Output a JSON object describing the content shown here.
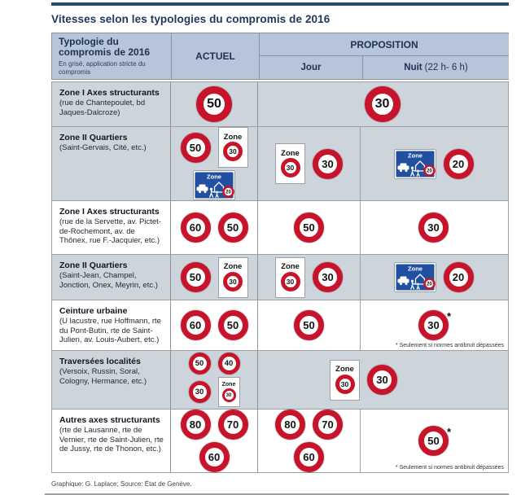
{
  "title": "Vitesses selon les typologies du compromis de 2016",
  "header": {
    "col_typology_title": "Typologie du compromis de 2016",
    "col_typology_note": "En grisé, application stricte du compromis",
    "col_actuel": "ACTUEL",
    "col_proposition": "PROPOSITION",
    "col_jour": "Jour",
    "col_nuit_label": "Nuit",
    "col_nuit_hours": "(22 h- 6 h)"
  },
  "signs": {
    "zone_label": "Zone",
    "zone30_value": "30",
    "zone_rencontre_value": "20"
  },
  "footnote": "* Seulement si normes antibruit dépassées",
  "footer": "Graphique: G. Laplace; Source: État de Genève.",
  "colors": {
    "top_rule": "#1b5074",
    "title_text": "#21375c",
    "header_cell_bg": "#b6c5d9",
    "shaded_row_bg": "#ced4dc",
    "sign_red": "#c8142b",
    "zone_sign_blue": "#2150a3"
  },
  "rows": [
    {
      "name": "Zone I Axes structurants",
      "details": "(rue de Chantepoulet, bd Jaques-Dalcroze)",
      "shaded": true,
      "merged": true,
      "actuel": [
        [
          {
            "t": "limit",
            "v": "50",
            "s": "lg"
          }
        ]
      ],
      "proposition": [
        [
          {
            "t": "limit",
            "v": "30",
            "s": "lg"
          }
        ]
      ]
    },
    {
      "name": "Zone II Quartiers",
      "details": "(Saint-Gervais, Cité, etc.)",
      "shaded": true,
      "merged": false,
      "actuel": [
        [
          {
            "t": "limit",
            "v": "50",
            "s": "md"
          },
          {
            "t": "zone30",
            "s": "md"
          }
        ],
        [
          {
            "t": "zoneb"
          }
        ]
      ],
      "jour": [
        [
          {
            "t": "zone30",
            "s": "md"
          },
          {
            "t": "limit",
            "v": "30",
            "s": "md"
          }
        ]
      ],
      "nuit": [
        [
          {
            "t": "zoneb"
          },
          {
            "t": "limit",
            "v": "20",
            "s": "md"
          }
        ]
      ]
    },
    {
      "name": "Zone I Axes structurants",
      "details": "(rue de la Servette, av. Pictet-de-Rochemont, av. de Thônex, rue F.-Jacquier, etc.)",
      "shaded": false,
      "merged": false,
      "actuel": [
        [
          {
            "t": "limit",
            "v": "60",
            "s": "md"
          },
          {
            "t": "limit",
            "v": "50",
            "s": "md"
          }
        ]
      ],
      "jour": [
        [
          {
            "t": "limit",
            "v": "50",
            "s": "md"
          }
        ]
      ],
      "nuit": [
        [
          {
            "t": "limit",
            "v": "30",
            "s": "md"
          }
        ]
      ]
    },
    {
      "name": "Zone II Quartiers",
      "details": "(Saint-Jean, Champel, Jonction, Onex, Meyrin, etc.)",
      "shaded": true,
      "merged": false,
      "actuel": [
        [
          {
            "t": "limit",
            "v": "50",
            "s": "md"
          },
          {
            "t": "zone30",
            "s": "md"
          }
        ]
      ],
      "jour": [
        [
          {
            "t": "zone30",
            "s": "md"
          },
          {
            "t": "limit",
            "v": "30",
            "s": "md"
          }
        ]
      ],
      "nuit": [
        [
          {
            "t": "zoneb"
          },
          {
            "t": "limit",
            "v": "20",
            "s": "md"
          }
        ]
      ]
    },
    {
      "name": "Ceinture urbaine",
      "details": "(U lacustre, rue Hoffmann, rte du Pont-Butin, rte de Saint-Julien, av. Louis-Aubert, etc.)",
      "shaded": false,
      "merged": false,
      "actuel": [
        [
          {
            "t": "limit",
            "v": "60",
            "s": "md"
          },
          {
            "t": "limit",
            "v": "50",
            "s": "md"
          }
        ]
      ],
      "jour": [
        [
          {
            "t": "limit",
            "v": "50",
            "s": "md"
          }
        ]
      ],
      "nuit": [
        [
          {
            "t": "limit",
            "v": "30",
            "s": "md",
            "star": true
          }
        ]
      ],
      "nuit_footnote": true
    },
    {
      "name": "Traversées localités",
      "details": "(Versoix, Russin, Soral, Cologny, Hermance, etc.)",
      "shaded": true,
      "merged": true,
      "actuel": [
        [
          {
            "t": "limit",
            "v": "50",
            "s": "sm"
          },
          {
            "t": "limit",
            "v": "40",
            "s": "sm"
          }
        ],
        [
          {
            "t": "limit",
            "v": "30",
            "s": "sm"
          },
          {
            "t": "zone30",
            "s": "sm"
          }
        ]
      ],
      "proposition": [
        [
          {
            "t": "zone30",
            "s": "md"
          },
          {
            "t": "limit",
            "v": "30",
            "s": "md"
          }
        ]
      ]
    },
    {
      "name": "Autres axes structurants",
      "details": "(rte de Lausanne, rte de Vernier, rte de Saint-Julien, rte de Jussy, rte de Thonon, etc.)",
      "shaded": false,
      "merged": false,
      "actuel": [
        [
          {
            "t": "limit",
            "v": "80",
            "s": "md"
          },
          {
            "t": "limit",
            "v": "70",
            "s": "md"
          }
        ],
        [
          {
            "t": "limit",
            "v": "60",
            "s": "md"
          }
        ]
      ],
      "jour": [
        [
          {
            "t": "limit",
            "v": "80",
            "s": "md"
          },
          {
            "t": "limit",
            "v": "70",
            "s": "md"
          }
        ],
        [
          {
            "t": "limit",
            "v": "60",
            "s": "md"
          }
        ]
      ],
      "nuit": [
        [
          {
            "t": "limit",
            "v": "50",
            "s": "md",
            "star": true
          }
        ]
      ],
      "nuit_footnote": true
    }
  ],
  "chart_data": {
    "type": "table",
    "title": "Vitesses selon les typologies du compromis de 2016",
    "columns": [
      "Typologie du compromis de 2016",
      "ACTUEL",
      "PROPOSITION — Jour",
      "PROPOSITION — Nuit (22 h- 6 h)"
    ],
    "legend_note": "En grisé, application stricte du compromis",
    "rows": [
      {
        "typologie": "Zone I Axes structurants (rue de Chantepoulet, bd Jaques-Dalcroze)",
        "actuel": "50",
        "proposition_jour": "30",
        "proposition_nuit": "30",
        "application_stricte": true
      },
      {
        "typologie": "Zone II Quartiers (Saint-Gervais, Cité, etc.)",
        "actuel": "50, Zone 30, Zone de rencontre 20",
        "proposition_jour": "Zone 30, 30",
        "proposition_nuit": "Zone de rencontre 20, 20",
        "application_stricte": true
      },
      {
        "typologie": "Zone I Axes structurants (rue de la Servette, av. Pictet-de-Rochemont, av. de Thônex, rue F.-Jacquier, etc.)",
        "actuel": "60, 50",
        "proposition_jour": "50",
        "proposition_nuit": "30",
        "application_stricte": false
      },
      {
        "typologie": "Zone II Quartiers (Saint-Jean, Champel, Jonction, Onex, Meyrin, etc.)",
        "actuel": "50, Zone 30",
        "proposition_jour": "Zone 30, 30",
        "proposition_nuit": "Zone de rencontre 20, 20",
        "application_stricte": true
      },
      {
        "typologie": "Ceinture urbaine (U lacustre, rue Hoffmann, rte du Pont-Butin, rte de Saint-Julien, av. Louis-Aubert, etc.)",
        "actuel": "60, 50",
        "proposition_jour": "50",
        "proposition_nuit": "30*",
        "application_stricte": false
      },
      {
        "typologie": "Traversées localités (Versoix, Russin, Soral, Cologny, Hermance, etc.)",
        "actuel": "50, 40, 30, Zone 30",
        "proposition_jour": "Zone 30, 30",
        "proposition_nuit": "Zone 30, 30",
        "application_stricte": true
      },
      {
        "typologie": "Autres axes structurants (rte de Lausanne, rte de Vernier, rte de Saint-Julien, rte de Jussy, rte de Thonon, etc.)",
        "actuel": "80, 70, 60",
        "proposition_jour": "80, 70, 60",
        "proposition_nuit": "50*",
        "application_stricte": false
      }
    ],
    "footnote": "* Seulement si normes antibruit dépassées",
    "source": "Graphique: G. Laplace; Source: État de Genève."
  }
}
